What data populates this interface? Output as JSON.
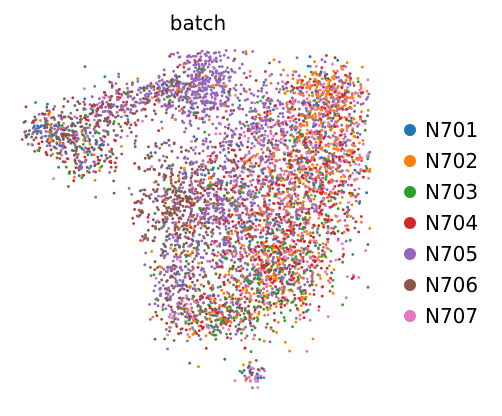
{
  "chart_data": {
    "type": "scatter",
    "title": "batch",
    "xlabel": "",
    "ylabel": "",
    "axes_visible": false,
    "grid": false,
    "legend_position": "right",
    "point_size": "small",
    "series": [
      {
        "name": "N701",
        "color": "#1f77b4",
        "weight": 0.04
      },
      {
        "name": "N702",
        "color": "#ff7f0e",
        "weight": 0.14
      },
      {
        "name": "N703",
        "color": "#2ca02c",
        "weight": 0.08
      },
      {
        "name": "N704",
        "color": "#d62728",
        "weight": 0.12
      },
      {
        "name": "N705",
        "color": "#9467bd",
        "weight": 0.32
      },
      {
        "name": "N706",
        "color": "#8c564b",
        "weight": 0.18
      },
      {
        "name": "N707",
        "color": "#e377c2",
        "weight": 0.12
      }
    ],
    "total_points_approx": 6000
  }
}
